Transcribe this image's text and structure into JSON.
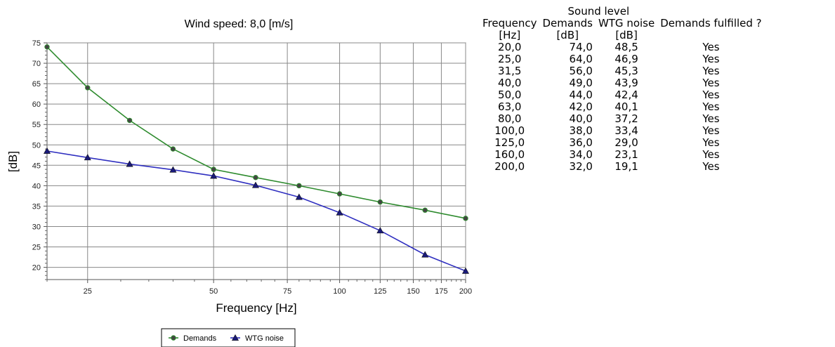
{
  "chart_data": {
    "type": "line",
    "title": "Wind speed: 8,0 [m/s]",
    "xlabel": "Frequency [Hz]",
    "ylabel": "[dB]",
    "x_scale": "log",
    "xlim": [
      20,
      200
    ],
    "ylim": [
      17,
      75
    ],
    "x_ticks": [
      25,
      50,
      75,
      100,
      125,
      150,
      175,
      200
    ],
    "y_ticks": [
      20,
      25,
      30,
      35,
      40,
      45,
      50,
      55,
      60,
      65,
      70,
      75
    ],
    "grid": true,
    "legend": "bottom",
    "x": [
      20,
      25,
      31.5,
      40,
      50,
      63,
      80,
      100,
      125,
      160,
      200
    ],
    "series": [
      {
        "name": "Demands",
        "marker": "circle",
        "color": "#2e8b2e",
        "values": [
          74,
          64,
          56,
          49,
          44,
          42,
          40,
          38,
          36,
          34,
          32
        ]
      },
      {
        "name": "WTG noise",
        "marker": "triangle",
        "color": "#2f2fc0",
        "values": [
          48.5,
          46.9,
          45.3,
          43.9,
          42.4,
          40.1,
          37.2,
          33.4,
          29.0,
          23.1,
          19.1
        ]
      }
    ]
  },
  "table": {
    "group_header": "Sound level",
    "headers": [
      "Frequency",
      "Demands",
      "WTG noise",
      "Demands fulfilled ?"
    ],
    "units": [
      "[Hz]",
      "[dB]",
      "[dB]",
      ""
    ],
    "rows": [
      [
        "20,0",
        "74,0",
        "48,5",
        "Yes"
      ],
      [
        "25,0",
        "64,0",
        "46,9",
        "Yes"
      ],
      [
        "31,5",
        "56,0",
        "45,3",
        "Yes"
      ],
      [
        "40,0",
        "49,0",
        "43,9",
        "Yes"
      ],
      [
        "50,0",
        "44,0",
        "42,4",
        "Yes"
      ],
      [
        "63,0",
        "42,0",
        "40,1",
        "Yes"
      ],
      [
        "80,0",
        "40,0",
        "37,2",
        "Yes"
      ],
      [
        "100,0",
        "38,0",
        "33,4",
        "Yes"
      ],
      [
        "125,0",
        "36,0",
        "29,0",
        "Yes"
      ],
      [
        "160,0",
        "34,0",
        "23,1",
        "Yes"
      ],
      [
        "200,0",
        "32,0",
        "19,1",
        "Yes"
      ]
    ]
  }
}
